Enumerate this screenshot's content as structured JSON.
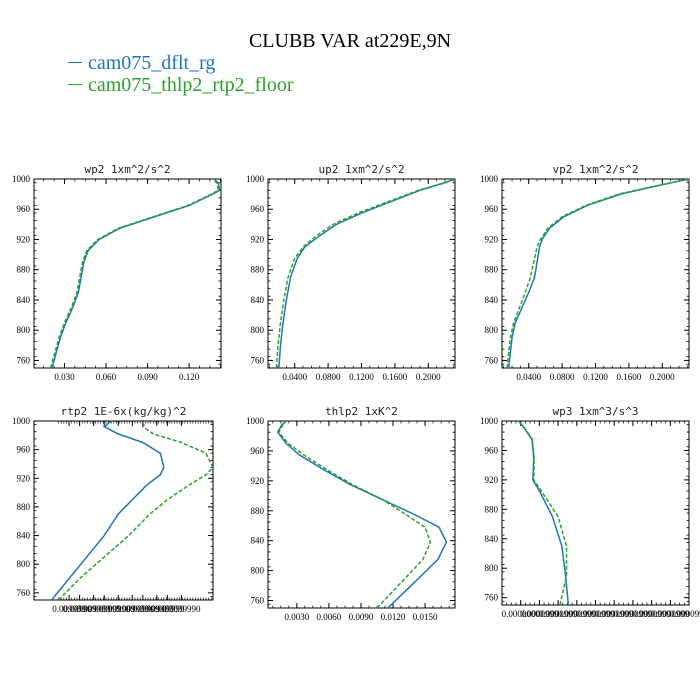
{
  "title": "CLUBB VAR at229E,9N",
  "legend": [
    {
      "label": "cam075_dflt_rg",
      "color": "#1f77b4"
    },
    {
      "label": "cam075_thlp2_rtp2_floor",
      "color": "#2ca02c"
    }
  ],
  "chart_data": [
    {
      "type": "line",
      "title": "wp2   1xm^2/s^2",
      "xlim": [
        0.008,
        0.143
      ],
      "ylim": [
        1000,
        750
      ],
      "xticks": [
        0.03,
        0.06,
        0.09,
        0.12
      ],
      "xtick_labels": [
        "0.030",
        "0.060",
        "0.090",
        "0.120"
      ],
      "yticks": [
        760,
        800,
        840,
        880,
        920,
        960,
        1000
      ],
      "ytick_labels": [
        "760",
        "800",
        "840",
        "880",
        "920",
        "960",
        "1000"
      ],
      "series": [
        {
          "name": "cam075_dflt_rg",
          "points": [
            [
              0.021,
              750
            ],
            [
              0.024,
              770
            ],
            [
              0.027,
              790
            ],
            [
              0.031,
              810
            ],
            [
              0.036,
              830
            ],
            [
              0.04,
              850
            ],
            [
              0.042,
              870
            ],
            [
              0.044,
              890
            ],
            [
              0.047,
              905
            ],
            [
              0.055,
              920
            ],
            [
              0.07,
              935
            ],
            [
              0.095,
              950
            ],
            [
              0.12,
              965
            ],
            [
              0.137,
              980
            ],
            [
              0.142,
              985
            ],
            [
              0.141,
              995
            ],
            [
              0.138,
              1000
            ]
          ]
        },
        {
          "name": "cam075_thlp2_rtp2_floor",
          "points": [
            [
              0.02,
              750
            ],
            [
              0.023,
              770
            ],
            [
              0.026,
              790
            ],
            [
              0.03,
              810
            ],
            [
              0.035,
              830
            ],
            [
              0.039,
              850
            ],
            [
              0.041,
              870
            ],
            [
              0.043,
              890
            ],
            [
              0.046,
              905
            ],
            [
              0.054,
              920
            ],
            [
              0.069,
              935
            ],
            [
              0.094,
              950
            ],
            [
              0.119,
              965
            ],
            [
              0.136,
              980
            ],
            [
              0.141,
              985
            ],
            [
              0.14,
              995
            ],
            [
              0.137,
              1000
            ]
          ]
        }
      ]
    },
    {
      "type": "line",
      "title": "up2   1xm^2/s^2",
      "xlim": [
        0.008,
        0.232
      ],
      "ylim": [
        1000,
        750
      ],
      "xticks": [
        0.04,
        0.08,
        0.12,
        0.16,
        0.2
      ],
      "xtick_labels": [
        "0.0400",
        "0.0800",
        "0.1200",
        "0.1600",
        "0.2000"
      ],
      "yticks": [
        760,
        800,
        840,
        880,
        920,
        960,
        1000
      ],
      "ytick_labels": [
        "760",
        "800",
        "840",
        "880",
        "920",
        "960",
        "1000"
      ],
      "series": [
        {
          "name": "cam075_dflt_rg",
          "points": [
            [
              0.021,
              750
            ],
            [
              0.023,
              780
            ],
            [
              0.026,
              810
            ],
            [
              0.03,
              840
            ],
            [
              0.035,
              870
            ],
            [
              0.043,
              895
            ],
            [
              0.052,
              910
            ],
            [
              0.07,
              925
            ],
            [
              0.09,
              940
            ],
            [
              0.12,
              955
            ],
            [
              0.155,
              970
            ],
            [
              0.19,
              985
            ],
            [
              0.22,
              995
            ],
            [
              0.232,
              1000
            ]
          ]
        },
        {
          "name": "cam075_thlp2_rtp2_floor",
          "points": [
            [
              0.018,
              750
            ],
            [
              0.02,
              780
            ],
            [
              0.023,
              810
            ],
            [
              0.027,
              840
            ],
            [
              0.032,
              870
            ],
            [
              0.04,
              895
            ],
            [
              0.05,
              910
            ],
            [
              0.066,
              925
            ],
            [
              0.086,
              940
            ],
            [
              0.116,
              955
            ],
            [
              0.152,
              970
            ],
            [
              0.188,
              985
            ],
            [
              0.219,
              995
            ],
            [
              0.232,
              1000
            ]
          ]
        }
      ]
    },
    {
      "type": "line",
      "title": "vp2   1xm^2/s^2",
      "xlim": [
        0.008,
        0.232
      ],
      "ylim": [
        1000,
        750
      ],
      "xticks": [
        0.04,
        0.08,
        0.12,
        0.16,
        0.2
      ],
      "xtick_labels": [
        "0.0400",
        "0.0800",
        "0.1200",
        "0.1600",
        "0.2000"
      ],
      "yticks": [
        760,
        800,
        840,
        880,
        920,
        960,
        1000
      ],
      "ytick_labels": [
        "760",
        "800",
        "840",
        "880",
        "920",
        "960",
        "1000"
      ],
      "series": [
        {
          "name": "cam075_dflt_rg",
          "points": [
            [
              0.016,
              750
            ],
            [
              0.018,
              770
            ],
            [
              0.02,
              790
            ],
            [
              0.024,
              810
            ],
            [
              0.032,
              830
            ],
            [
              0.04,
              850
            ],
            [
              0.047,
              870
            ],
            [
              0.05,
              890
            ],
            [
              0.053,
              910
            ],
            [
              0.056,
              920
            ],
            [
              0.065,
              935
            ],
            [
              0.082,
              950
            ],
            [
              0.11,
              965
            ],
            [
              0.15,
              980
            ],
            [
              0.19,
              990
            ],
            [
              0.232,
              1000
            ]
          ]
        },
        {
          "name": "cam075_thlp2_rtp2_floor",
          "points": [
            [
              0.014,
              750
            ],
            [
              0.016,
              770
            ],
            [
              0.018,
              790
            ],
            [
              0.022,
              810
            ],
            [
              0.029,
              830
            ],
            [
              0.036,
              850
            ],
            [
              0.042,
              870
            ],
            [
              0.046,
              890
            ],
            [
              0.05,
              910
            ],
            [
              0.054,
              920
            ],
            [
              0.063,
              935
            ],
            [
              0.08,
              950
            ],
            [
              0.108,
              965
            ],
            [
              0.148,
              980
            ],
            [
              0.188,
              990
            ],
            [
              0.232,
              1000
            ]
          ]
        }
      ]
    },
    {
      "type": "line",
      "title": "rtp2   1E-6x(kg/kg)^2",
      "xlim": [
        0.0099948,
        0.0099999
      ],
      "ylim": [
        1000,
        750
      ],
      "xticks": [
        0.0099958,
        0.0099961,
        0.0099965,
        0.0099968,
        0.0099972,
        0.0099976,
        0.0099979,
        0.0099983,
        0.0099986,
        0.009999
      ],
      "xtick_labels": [
        "0.009999",
        "0.009999",
        "0.009999",
        "0.009999",
        "0.009999",
        "0.009999",
        "0.009999",
        "0.009999",
        "0.009999",
        "0.0099990"
      ],
      "yticks": [
        760,
        800,
        840,
        880,
        920,
        960,
        1000
      ],
      "ytick_labels": [
        "760",
        "800",
        "840",
        "880",
        "920",
        "960",
        "1000"
      ],
      "series": [
        {
          "name": "cam075_dflt_rg",
          "points": [
            [
              0.0099953,
              750
            ],
            [
              0.0099958,
              780
            ],
            [
              0.0099963,
              810
            ],
            [
              0.0099968,
              840
            ],
            [
              0.0099972,
              870
            ],
            [
              0.0099976,
              890
            ],
            [
              0.009998,
              910
            ],
            [
              0.0099984,
              925
            ],
            [
              0.0099985,
              935
            ],
            [
              0.0099984,
              955
            ],
            [
              0.0099979,
              970
            ],
            [
              0.0099972,
              982
            ],
            [
              0.0099968,
              992
            ],
            [
              0.009997,
              1000
            ]
          ]
        },
        {
          "name": "cam075_thlp2_rtp2_floor",
          "points": [
            [
              0.0099955,
              750
            ],
            [
              0.0099961,
              780
            ],
            [
              0.0099968,
              810
            ],
            [
              0.0099975,
              840
            ],
            [
              0.0099981,
              870
            ],
            [
              0.0099986,
              890
            ],
            [
              0.0099992,
              910
            ],
            [
              0.0099997,
              925
            ],
            [
              0.0099999,
              935
            ],
            [
              0.0099997,
              955
            ],
            [
              0.009999,
              970
            ],
            [
              0.0099982,
              982
            ],
            [
              0.0099979,
              992
            ],
            [
              0.009998,
              1000
            ]
          ]
        }
      ]
    },
    {
      "type": "line",
      "title": "thlp2   1xK^2",
      "xlim": [
        0.0003,
        0.0178
      ],
      "ylim": [
        1000,
        750
      ],
      "xticks": [
        0.003,
        0.006,
        0.009,
        0.012,
        0.015
      ],
      "xtick_labels": [
        "0.0030",
        "0.0060",
        "0.0090",
        "0.0120",
        "0.0150"
      ],
      "yticks": [
        760,
        800,
        840,
        880,
        920,
        960,
        1000
      ],
      "ytick_labels": [
        "760",
        "800",
        "840",
        "880",
        "920",
        "960",
        "1000"
      ],
      "series": [
        {
          "name": "cam075_dflt_rg",
          "points": [
            [
              0.0115,
              750
            ],
            [
              0.0137,
              780
            ],
            [
              0.0162,
              815
            ],
            [
              0.017,
              838
            ],
            [
              0.0163,
              858
            ],
            [
              0.014,
              875
            ],
            [
              0.011,
              895
            ],
            [
              0.008,
              915
            ],
            [
              0.0055,
              935
            ],
            [
              0.0032,
              955
            ],
            [
              0.002,
              970
            ],
            [
              0.0012,
              985
            ],
            [
              0.0016,
              995
            ],
            [
              0.002,
              1000
            ]
          ]
        },
        {
          "name": "cam075_thlp2_rtp2_floor",
          "points": [
            [
              0.0105,
              750
            ],
            [
              0.0125,
              780
            ],
            [
              0.0148,
              815
            ],
            [
              0.0155,
              838
            ],
            [
              0.015,
              858
            ],
            [
              0.0132,
              875
            ],
            [
              0.011,
              895
            ],
            [
              0.0082,
              915
            ],
            [
              0.0058,
              935
            ],
            [
              0.0036,
              955
            ],
            [
              0.0022,
              970
            ],
            [
              0.0013,
              985
            ],
            [
              0.0017,
              995
            ],
            [
              0.002,
              1000
            ]
          ]
        }
      ]
    },
    {
      "type": "line",
      "title": "wp3   1xm^3/s^3",
      "xlim": [
        -1e-05,
        9e-05
      ],
      "ylim": [
        1000,
        750
      ],
      "xticks": [
        0.0,
        1e-05,
        2e-05,
        3e-05,
        4e-05,
        5e-05,
        6e-05,
        7e-05,
        8e-05,
        9e-05
      ],
      "xtick_labels": [
        "0.0000000",
        "0.0000999",
        "0.0000999",
        "0.0000999",
        "0.0000999",
        "0.0000999",
        "0.0000999",
        "0.0000999",
        "0.0000999",
        "0.0000999"
      ],
      "yticks": [
        760,
        800,
        840,
        880,
        920,
        960,
        1000
      ],
      "ytick_labels": [
        "760",
        "800",
        "840",
        "880",
        "920",
        "960",
        "1000"
      ],
      "series": [
        {
          "name": "cam075_dflt_rg",
          "points": [
            [
              2.55e-05,
              750
            ],
            [
              2.4e-05,
              790
            ],
            [
              2.2e-05,
              830
            ],
            [
              1.7e-05,
              870
            ],
            [
              1e-05,
              905
            ],
            [
              6.5e-06,
              920
            ],
            [
              7e-06,
              950
            ],
            [
              6e-06,
              975
            ],
            [
              2e-06,
              990
            ],
            [
              -5e-07,
              998
            ],
            [
              -1e-06,
              1000
            ]
          ]
        },
        {
          "name": "cam075_thlp2_rtp2_floor",
          "points": [
            [
              2.1e-05,
              750
            ],
            [
              2.45e-05,
              790
            ],
            [
              2.45e-05,
              830
            ],
            [
              2e-05,
              870
            ],
            [
              1.1e-05,
              905
            ],
            [
              7e-06,
              920
            ],
            [
              7.2e-06,
              950
            ],
            [
              6.2e-06,
              975
            ],
            [
              2.2e-06,
              990
            ],
            [
              -3e-07,
              998
            ],
            [
              -8e-07,
              1000
            ]
          ]
        }
      ]
    }
  ]
}
